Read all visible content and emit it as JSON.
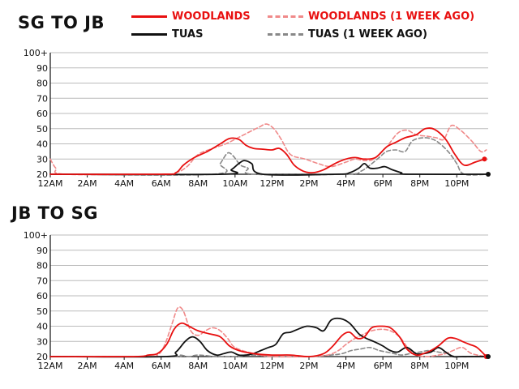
{
  "chart_data": [
    {
      "type": "line",
      "title": "SG TO JB",
      "x_ticks": [
        "12AM",
        "2AM",
        "4AM",
        "6AM",
        "8AM",
        "10AM",
        "12PM",
        "2PM",
        "4PM",
        "6PM",
        "8PM",
        "10PM"
      ],
      "y_ticks": [
        "20",
        "30",
        "40",
        "50",
        "60",
        "70",
        "80",
        "90",
        "100+"
      ],
      "ylim": [
        20,
        100
      ],
      "xlim_hours": [
        0,
        23.7
      ],
      "grid": "horizontal",
      "series": [
        {
          "name": "WOODLANDS",
          "color": "#e81010",
          "style": "solid",
          "x": [
            0,
            6,
            6.8,
            7.2,
            7.8,
            8.5,
            9.2,
            9.7,
            10.2,
            10.6,
            11,
            11.5,
            12,
            12.4,
            12.8,
            13.2,
            13.7,
            14.2,
            14.8,
            15.4,
            16,
            16.5,
            17,
            17.6,
            18.2,
            18.7,
            19.2,
            19.8,
            20.3,
            20.8,
            21.4,
            21.9,
            22.4,
            23,
            23.5
          ],
          "y": [
            20,
            20,
            21,
            26,
            31,
            35,
            40,
            43.5,
            43,
            39,
            37,
            36.5,
            36,
            37,
            33,
            26,
            22,
            21,
            23,
            27,
            30,
            31,
            30,
            31,
            38,
            41,
            44,
            46,
            50,
            49.5,
            43,
            33,
            26,
            28,
            30
          ]
        },
        {
          "name": "WOODLANDS (1 WEEK AGO)",
          "color": "#f08a8a",
          "style": "dashed",
          "x": [
            0,
            0.3,
            0.8,
            6,
            6.8,
            7.4,
            8,
            8.8,
            9.5,
            10,
            10.8,
            11.3,
            11.7,
            12.1,
            12.5,
            13,
            13.8,
            14.5,
            15.2,
            16,
            16.5,
            17,
            17.5,
            18.2,
            18.8,
            19.3,
            19.8,
            20.4,
            20.9,
            21.3,
            21.7,
            22.2,
            22.8,
            23.3,
            23.6
          ],
          "y": [
            30,
            24,
            20,
            20,
            21,
            25,
            33,
            37,
            40,
            43,
            48,
            51,
            53,
            50,
            43,
            33,
            30,
            27,
            25,
            28,
            30,
            29,
            30,
            38,
            47,
            49,
            46,
            45,
            44,
            43,
            52,
            49,
            42,
            35,
            36
          ]
        },
        {
          "name": "TUAS",
          "color": "#111111",
          "style": "solid",
          "x": [
            0,
            9.3,
            9.8,
            10.2,
            10.5,
            10.9,
            11.5,
            15.5,
            16.2,
            16.7,
            17,
            17.3,
            17.7,
            18.1,
            18.5,
            19,
            19.4,
            23.7
          ],
          "y": [
            20,
            20,
            23,
            27,
            29,
            27,
            20,
            20,
            21,
            24,
            27,
            24,
            24,
            25,
            23,
            21,
            20,
            20
          ]
        },
        {
          "name": "TUAS (1 WEEK AGO)",
          "color": "#888888",
          "style": "dashed",
          "x": [
            0,
            8.8,
            9.2,
            9.6,
            9.9,
            10.3,
            10.7,
            11,
            16,
            16.8,
            17.3,
            17.8,
            18.2,
            18.7,
            19.2,
            19.6,
            20.2,
            20.7,
            21.1,
            21.6,
            22,
            22.4,
            23.7
          ],
          "y": [
            20,
            20,
            27,
            34,
            32,
            26,
            24,
            20,
            20,
            22,
            26,
            31,
            35,
            36,
            35,
            42,
            44,
            43,
            40,
            34,
            27,
            20,
            20
          ]
        }
      ]
    },
    {
      "type": "line",
      "title": "JB TO SG",
      "x_ticks": [
        "12AM",
        "2AM",
        "4AM",
        "6AM",
        "8AM",
        "10AM",
        "12PM",
        "2PM",
        "4PM",
        "6PM",
        "8PM",
        "10PM"
      ],
      "y_ticks": [
        "20",
        "30",
        "40",
        "50",
        "60",
        "70",
        "80",
        "90",
        "100+"
      ],
      "ylim": [
        20,
        100
      ],
      "xlim_hours": [
        0,
        23.7
      ],
      "grid": "horizontal",
      "series": [
        {
          "name": "WOODLANDS",
          "color": "#e81010",
          "style": "solid",
          "x": [
            0,
            4.5,
            5.3,
            5.8,
            6.3,
            6.7,
            7.1,
            7.5,
            8,
            8.6,
            9.2,
            9.7,
            10.2,
            11,
            12,
            13,
            14,
            14.8,
            15.3,
            15.8,
            16.2,
            16.6,
            17,
            17.4,
            17.9,
            18.4,
            18.9,
            19.3,
            19.8,
            20.2,
            20.6,
            21,
            21.5,
            21.9,
            22.3,
            22.7,
            23.1,
            23.6
          ],
          "y": [
            20,
            20,
            21,
            22,
            28,
            38,
            42,
            40,
            37,
            35,
            33,
            27,
            24,
            22,
            21,
            21,
            20,
            22,
            27,
            34,
            36,
            32,
            33,
            39,
            40,
            39,
            33,
            25,
            21,
            22,
            24,
            27,
            32,
            32,
            30,
            28,
            26,
            20
          ]
        },
        {
          "name": "WOODLANDS (1 WEEK AGO)",
          "color": "#f08a8a",
          "style": "dashed",
          "x": [
            0,
            5,
            5.8,
            6.2,
            6.6,
            6.9,
            7.2,
            7.6,
            8,
            8.4,
            8.8,
            9.2,
            9.6,
            10,
            11,
            12,
            14,
            15,
            15.6,
            16,
            16.5,
            17,
            17.4,
            17.9,
            18.4,
            18.9,
            19.4,
            19.8,
            20.4,
            21,
            21.4,
            21.8,
            22.3,
            22.8,
            23.6
          ],
          "y": [
            20,
            20,
            21,
            28,
            42,
            52,
            50,
            37,
            34,
            37,
            39,
            37,
            32,
            26,
            22,
            20,
            20,
            21,
            24,
            28,
            32,
            35,
            37,
            38,
            37,
            33,
            25,
            21,
            20,
            21,
            22,
            24,
            26,
            22,
            20
          ]
        },
        {
          "name": "TUAS",
          "color": "#111111",
          "style": "solid",
          "x": [
            0,
            6.2,
            6.8,
            7.3,
            7.7,
            8.1,
            8.5,
            9,
            9.4,
            9.8,
            10.2,
            10.6,
            11,
            11.4,
            11.8,
            12.2,
            12.6,
            13,
            13.4,
            13.9,
            14.4,
            14.8,
            15.2,
            15.7,
            16.2,
            16.7,
            17.1,
            17.5,
            18,
            18.4,
            18.8,
            19.3,
            19.8,
            20.2,
            20.6,
            21,
            21.4,
            21.8,
            22.3,
            23.7
          ],
          "y": [
            20,
            20,
            23,
            30,
            33,
            30,
            24,
            21,
            22,
            23,
            21,
            21,
            22,
            24,
            26,
            28,
            35,
            36,
            38,
            40,
            39,
            37,
            44,
            45,
            42,
            35,
            32,
            30,
            27,
            24,
            23,
            26,
            22,
            22,
            23,
            26,
            23,
            20,
            20,
            20
          ]
        },
        {
          "name": "TUAS (1 WEEK AGO)",
          "color": "#888888",
          "style": "dashed",
          "x": [
            0,
            6.5,
            7,
            7.5,
            8,
            9,
            10,
            11,
            12,
            14,
            15.2,
            15.8,
            16.3,
            16.8,
            17.3,
            17.8,
            18.2,
            18.6,
            19,
            19.5,
            20,
            20.5,
            21,
            21.5,
            22,
            23.7
          ],
          "y": [
            20,
            20,
            21,
            20,
            21,
            20,
            20,
            21,
            20,
            20,
            21,
            22,
            24,
            25,
            26,
            24,
            23,
            22,
            21,
            22,
            23,
            24,
            23,
            22,
            20,
            20
          ]
        }
      ]
    }
  ]
}
